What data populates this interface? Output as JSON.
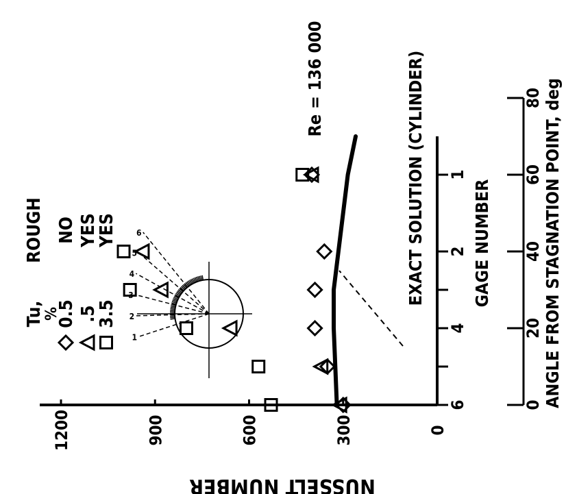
{
  "chart_data": {
    "type": "scatter",
    "orientation": "rotated 90 degrees counter-clockwise",
    "ylabel": "NUSSELT NUMBER",
    "xlabel_primary": "ANGLE FROM STAGNATION POINT, deg",
    "xlabel_secondary": "GAGE NUMBER",
    "annotation": "Re = 136 000",
    "curve_label": "EXACT SOLUTION (CYLINDER)",
    "x_ticks": [
      "0",
      "20",
      "40",
      "60",
      "80"
    ],
    "xlim": [
      0,
      80
    ],
    "y_ticks": [
      "0",
      "300",
      "600",
      "900",
      "1200"
    ],
    "ylim": [
      0,
      1500
    ],
    "gage_ticks": [
      {
        "label": "6",
        "angle": 0
      },
      {
        "label": "",
        "angle": 10
      },
      {
        "label": "4",
        "angle": 20
      },
      {
        "label": "",
        "angle": 30
      },
      {
        "label": "2",
        "angle": 40
      },
      {
        "label": "1",
        "angle": 60
      }
    ],
    "legend": {
      "header_tu": "Tu,",
      "header_tu_unit": "%",
      "header_rough": "ROUGH",
      "entries": [
        {
          "marker": "diamond",
          "tu": "0.5",
          "rough": "NO"
        },
        {
          "marker": "triangle",
          "tu": ".5",
          "rough": "YES"
        },
        {
          "marker": "square",
          "tu": "3.5",
          "rough": "YES"
        }
      ]
    },
    "inset_labels": [
      "1",
      "2",
      "3",
      "4",
      "5",
      "6"
    ],
    "series": [
      {
        "marker": "diamond",
        "points": [
          [
            0,
            300
          ],
          [
            10,
            350
          ],
          [
            20,
            390
          ],
          [
            30,
            390
          ],
          [
            40,
            360
          ],
          [
            60,
            400
          ]
        ]
      },
      {
        "marker": "triangle",
        "points": [
          [
            0,
            310
          ],
          [
            10,
            370
          ],
          [
            20,
            660
          ],
          [
            30,
            880
          ],
          [
            40,
            940
          ],
          [
            60,
            400
          ]
        ]
      },
      {
        "marker": "square",
        "points": [
          [
            0,
            530
          ],
          [
            10,
            570
          ],
          [
            20,
            800
          ],
          [
            30,
            980
          ],
          [
            40,
            1000
          ],
          [
            60,
            430
          ]
        ]
      }
    ],
    "exact_solution": [
      [
        0,
        320
      ],
      [
        10,
        325
      ],
      [
        20,
        330
      ],
      [
        30,
        330
      ],
      [
        40,
        315
      ],
      [
        50,
        300
      ],
      [
        60,
        285
      ],
      [
        70,
        260
      ]
    ]
  }
}
